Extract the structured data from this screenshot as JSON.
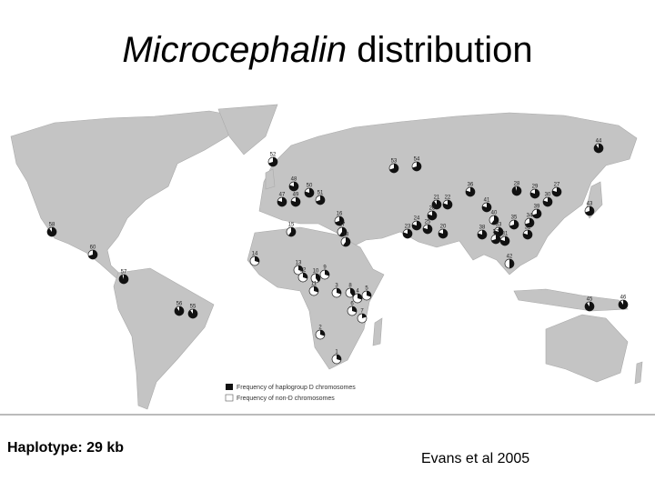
{
  "title": {
    "italic": "Microcephalin",
    "rest": "distribution"
  },
  "map": {
    "legend": {
      "d": "Frequency of haplogroup D chromosomes",
      "non_d": "Frequency of non-D chromosomes"
    },
    "sites": [
      {
        "label": "52",
        "d_frequency": 70
      },
      {
        "label": "44",
        "d_frequency": 90
      },
      {
        "label": "53",
        "d_frequency": 70
      },
      {
        "label": "54",
        "d_frequency": 70
      },
      {
        "label": "48",
        "d_frequency": 80
      },
      {
        "label": "50",
        "d_frequency": 80
      },
      {
        "label": "51",
        "d_frequency": 70
      },
      {
        "label": "47",
        "d_frequency": 80
      },
      {
        "label": "49",
        "d_frequency": 80
      },
      {
        "label": "36",
        "d_frequency": 80
      },
      {
        "label": "28",
        "d_frequency": 95
      },
      {
        "label": "29",
        "d_frequency": 80
      },
      {
        "label": "27",
        "d_frequency": 80
      },
      {
        "label": "30",
        "d_frequency": 80
      },
      {
        "label": "41",
        "d_frequency": 80
      },
      {
        "label": "21",
        "d_frequency": 90
      },
      {
        "label": "22",
        "d_frequency": 80
      },
      {
        "label": "26",
        "d_frequency": 80
      },
      {
        "label": "43",
        "d_frequency": 70
      },
      {
        "label": "15",
        "d_frequency": 60
      },
      {
        "label": "16",
        "d_frequency": 70
      },
      {
        "label": "17",
        "d_frequency": 60
      },
      {
        "label": "18",
        "d_frequency": 60
      },
      {
        "label": "24",
        "d_frequency": 80
      },
      {
        "label": "25",
        "d_frequency": 80
      },
      {
        "label": "23",
        "d_frequency": 80
      },
      {
        "label": "20",
        "d_frequency": 80
      },
      {
        "label": "40",
        "d_frequency": 60
      },
      {
        "label": "35",
        "d_frequency": 70
      },
      {
        "label": "33",
        "d_frequency": 80
      },
      {
        "label": "34",
        "d_frequency": 70
      },
      {
        "label": "32",
        "d_frequency": 80
      },
      {
        "label": "31",
        "d_frequency": 80
      },
      {
        "label": "37",
        "d_frequency": 70
      },
      {
        "label": "38",
        "d_frequency": 80
      },
      {
        "label": "39",
        "d_frequency": 70
      },
      {
        "label": "42",
        "d_frequency": 50
      },
      {
        "label": "45",
        "d_frequency": 90
      },
      {
        "label": "46",
        "d_frequency": 90
      },
      {
        "label": "58",
        "d_frequency": 90
      },
      {
        "label": "60",
        "d_frequency": 70
      },
      {
        "label": "57",
        "d_frequency": 95
      },
      {
        "label": "56",
        "d_frequency": 90
      },
      {
        "label": "55",
        "d_frequency": 90
      },
      {
        "label": "14",
        "d_frequency": 30
      },
      {
        "label": "13",
        "d_frequency": 30
      },
      {
        "label": "12",
        "d_frequency": 30
      },
      {
        "label": "10",
        "d_frequency": 40
      },
      {
        "label": "9",
        "d_frequency": 30
      },
      {
        "label": "11",
        "d_frequency": 30
      },
      {
        "label": "8",
        "d_frequency": 40
      },
      {
        "label": "3",
        "d_frequency": 30
      },
      {
        "label": "4",
        "d_frequency": 30
      },
      {
        "label": "5",
        "d_frequency": 30
      },
      {
        "label": "6",
        "d_frequency": 30
      },
      {
        "label": "7",
        "d_frequency": 20
      },
      {
        "label": "2",
        "d_frequency": 30
      },
      {
        "label": "1",
        "d_frequency": 30
      }
    ]
  },
  "footer": {
    "left": "Haplotype:  29 kb",
    "right": "Evans et al 2005"
  }
}
